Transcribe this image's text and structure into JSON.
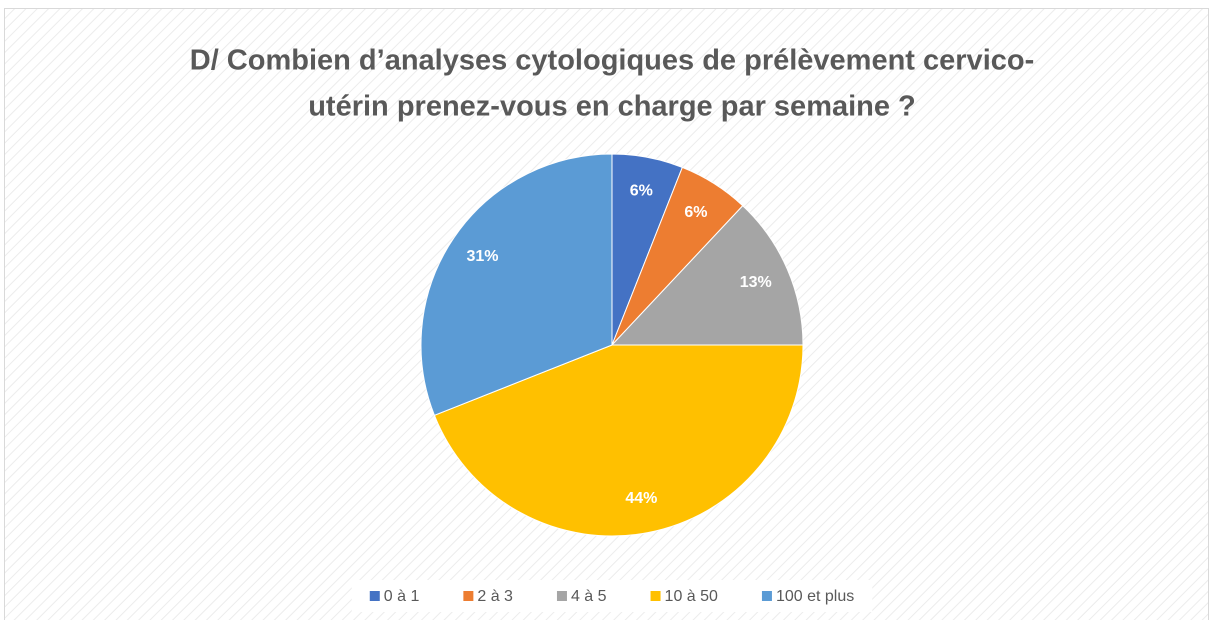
{
  "chart_data": {
    "type": "pie",
    "title": [
      "D/ Combien d’analyses cytologiques de prélèvement cervico-",
      "utérin prenez-vous en charge par semaine ?"
    ],
    "categories": [
      "0 à 1",
      "2 à 3",
      "4 à 5",
      "10 à 50",
      "100 et plus"
    ],
    "values": [
      6,
      6,
      13,
      44,
      31
    ],
    "value_labels": [
      "6%",
      "6%",
      "13%",
      "44%",
      "31%"
    ],
    "colors": [
      "#4472c4",
      "#ed7d31",
      "#a5a5a5",
      "#ffc000",
      "#5b9bd5"
    ],
    "legend": "bottom"
  }
}
